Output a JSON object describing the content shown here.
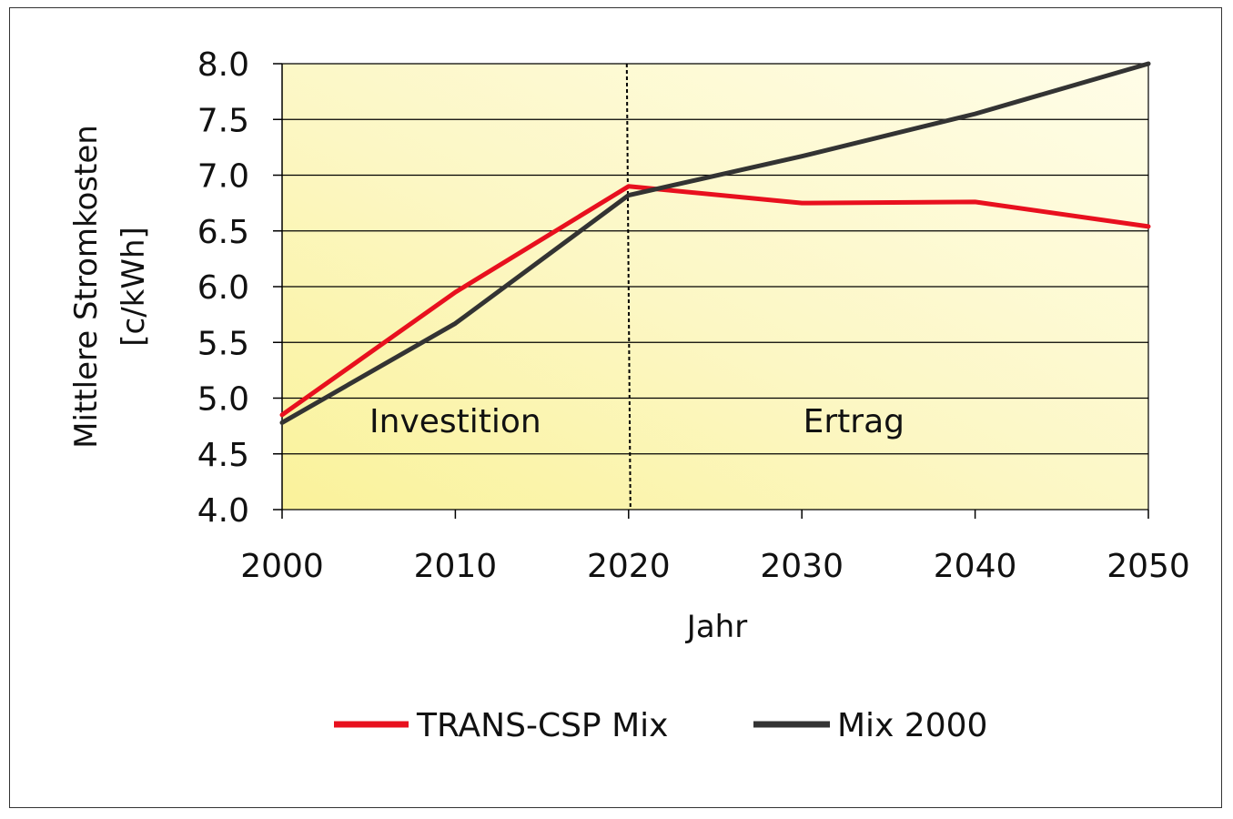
{
  "chart_data": {
    "type": "line",
    "title": "",
    "xlabel": "Jahr",
    "ylabel_line1": "Mittlere Stromkosten",
    "ylabel_line2": "[c/kWh]",
    "x": [
      2000,
      2010,
      2020,
      2030,
      2040,
      2050
    ],
    "xlim": [
      2000,
      2050
    ],
    "ylim": [
      4.0,
      8.0
    ],
    "ytick_step": 0.5,
    "grid": true,
    "legend_position": "bottom-center",
    "divider_x": 2020,
    "region_labels": [
      {
        "text": "Investition",
        "x": 2010,
        "y": 4.8
      },
      {
        "text": "Ertrag",
        "x": 2033,
        "y": 4.8
      }
    ],
    "series": [
      {
        "name": "TRANS-CSP Mix",
        "color": "#e8101e",
        "values": [
          4.85,
          5.95,
          6.9,
          6.75,
          6.76,
          6.54
        ]
      },
      {
        "name": "Mix 2000",
        "color": "#333333",
        "values": [
          4.78,
          5.67,
          6.82,
          7.17,
          7.55,
          8.0
        ]
      }
    ],
    "xtick_labels": [
      "2000",
      "2010",
      "2020",
      "2030",
      "2040",
      "2050"
    ],
    "ytick_labels": [
      "4.0",
      "4.5",
      "5.0",
      "5.5",
      "6.0",
      "6.5",
      "7.0",
      "7.5",
      "8.0"
    ],
    "colors": {
      "plot_bg_light": "#fffde8",
      "plot_bg_yellow": "#faf29a",
      "grid": "#000000"
    }
  }
}
